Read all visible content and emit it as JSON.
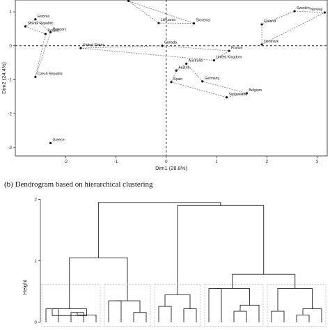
{
  "chart_data": [
    {
      "type": "scatter",
      "xlabel": "Dim1 (28.8%)",
      "ylabel": "Dim2 (24.4%)",
      "xlim": [
        -3.0,
        3.2
      ],
      "ylim": [
        -3.25,
        1.35
      ],
      "xticks": [
        "-2",
        "-1",
        "0",
        "1",
        "2",
        "3"
      ],
      "xtick_values": [
        -2,
        -1,
        0,
        1,
        2,
        3
      ],
      "yticks": [
        "1",
        "0",
        "-1",
        "-2",
        "-3"
      ],
      "ytick_values": [
        1,
        0,
        -1,
        -2,
        -3
      ],
      "reference_lines": {
        "x": 0,
        "y": 0
      },
      "points": [
        {
          "label": "Estonia",
          "x": -2.6,
          "y": 0.78
        },
        {
          "label": "Slovak Republic",
          "x": -2.8,
          "y": 0.57
        },
        {
          "label": "Hungary",
          "x": -2.3,
          "y": 0.4
        },
        {
          "label": "Poland",
          "x": -2.4,
          "y": 0.35
        },
        {
          "label": "Czech Republic",
          "x": -2.6,
          "y": -0.92
        },
        {
          "label": "United States",
          "x": -1.7,
          "y": -0.07
        },
        {
          "label": "Bulgaria",
          "x": -0.75,
          "y": 1.32
        },
        {
          "label": "Lithuania",
          "x": -0.15,
          "y": 0.67
        },
        {
          "label": "Slovenia",
          "x": 0.55,
          "y": 0.66
        },
        {
          "label": "Canada",
          "x": -0.08,
          "y": 0.0
        },
        {
          "label": "France",
          "x": 1.25,
          "y": -0.15
        },
        {
          "label": "United Kingdom",
          "x": 0.95,
          "y": -0.43
        },
        {
          "label": "Australia",
          "x": 0.4,
          "y": -0.53
        },
        {
          "label": "Austria",
          "x": 0.2,
          "y": -0.73
        },
        {
          "label": "Germany",
          "x": 0.72,
          "y": -1.05
        },
        {
          "label": "Spain",
          "x": 0.1,
          "y": -1.07
        },
        {
          "label": "Belgium",
          "x": 1.6,
          "y": -1.4
        },
        {
          "label": "Switzerland",
          "x": 1.2,
          "y": -1.52
        },
        {
          "label": "Greece",
          "x": -2.3,
          "y": -2.87
        },
        {
          "label": "Sweden",
          "x": 2.55,
          "y": 1.02
        },
        {
          "label": "Norway",
          "x": 3.15,
          "y": 0.98
        },
        {
          "label": "Finland",
          "x": 1.9,
          "y": 0.63
        },
        {
          "label": "Denmark",
          "x": 1.9,
          "y": 0.04
        }
      ],
      "clusters": [
        [
          "Estonia",
          "Slovak Republic",
          "Poland",
          "Czech Republic",
          "Hungary"
        ],
        [
          "United States",
          "Canada",
          "France",
          "United Kingdom"
        ],
        [
          "Australia",
          "Austria",
          "Spain",
          "Switzerland",
          "Belgium",
          "Germany"
        ],
        [
          "Sweden",
          "Norway",
          "Denmark",
          "Finland"
        ],
        [
          "Bulgaria",
          "Lithuania",
          "Slovenia"
        ]
      ]
    },
    {
      "type": "dendrogram",
      "title": "(b)    Dendrogram based on hierarchical clustering",
      "ylabel": "Height",
      "ylim": [
        0,
        2.05
      ],
      "yticks": [
        "2",
        "1",
        "0"
      ],
      "ytick_values": [
        2,
        1,
        0
      ]
    }
  ],
  "colors": {
    "line": "#222222",
    "hull": "#888888",
    "cluster_box": "#bbbbbb",
    "point": "#111111"
  }
}
